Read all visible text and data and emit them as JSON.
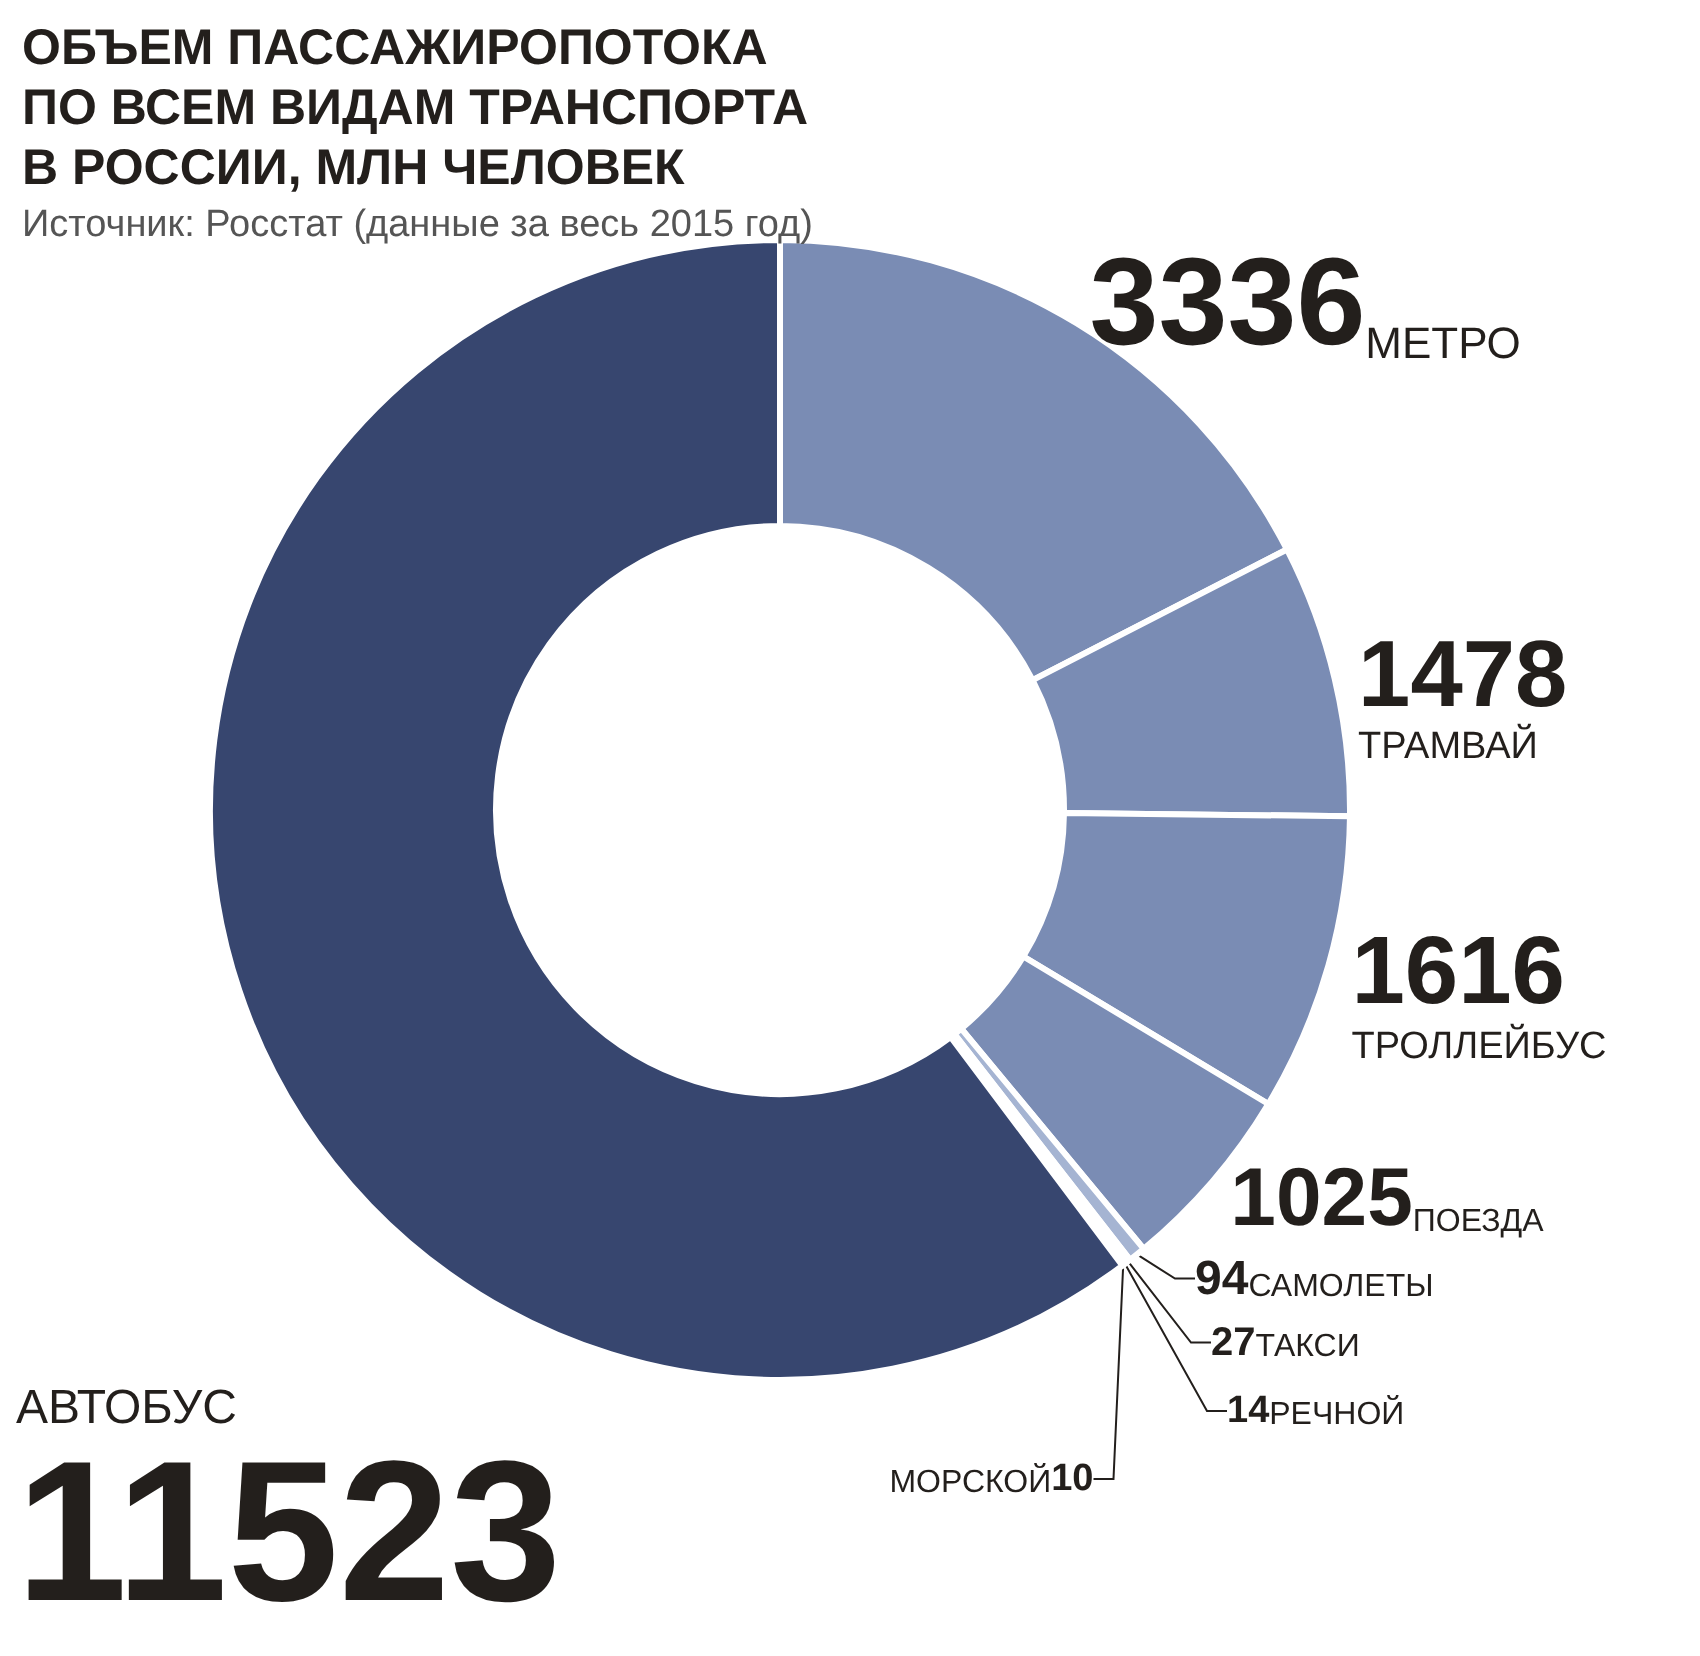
{
  "chart_data": {
    "type": "donut",
    "title": "ОБЪЕМ ПАССАЖИРОПОТОКА ПО ВСЕМ ВИДАМ ТРАНСПОРТА В РОССИИ, МЛН ЧЕЛОВЕК",
    "subtitle": "Источник: Росстат (данные за весь 2015 год)",
    "categories": [
      "МЕТРО",
      "ТРАМВАЙ",
      "ТРОЛЛЕЙБУС",
      "ПОЕЗДА",
      "САМОЛЕТЫ",
      "ТАКСИ",
      "РЕЧНОЙ",
      "МОРСКОЙ",
      "АВТОБУС"
    ],
    "values": [
      3336,
      1478,
      1616,
      1025,
      94,
      27,
      14,
      10,
      11523
    ],
    "colors": [
      "#7a8cb4",
      "#7a8cb4",
      "#7a8cb4",
      "#7a8cb4",
      "#a5b4d2",
      "#a5b4d2",
      "#a5b4d2",
      "#a5b4d2",
      "#37466f"
    ],
    "data_labels": true
  }
}
